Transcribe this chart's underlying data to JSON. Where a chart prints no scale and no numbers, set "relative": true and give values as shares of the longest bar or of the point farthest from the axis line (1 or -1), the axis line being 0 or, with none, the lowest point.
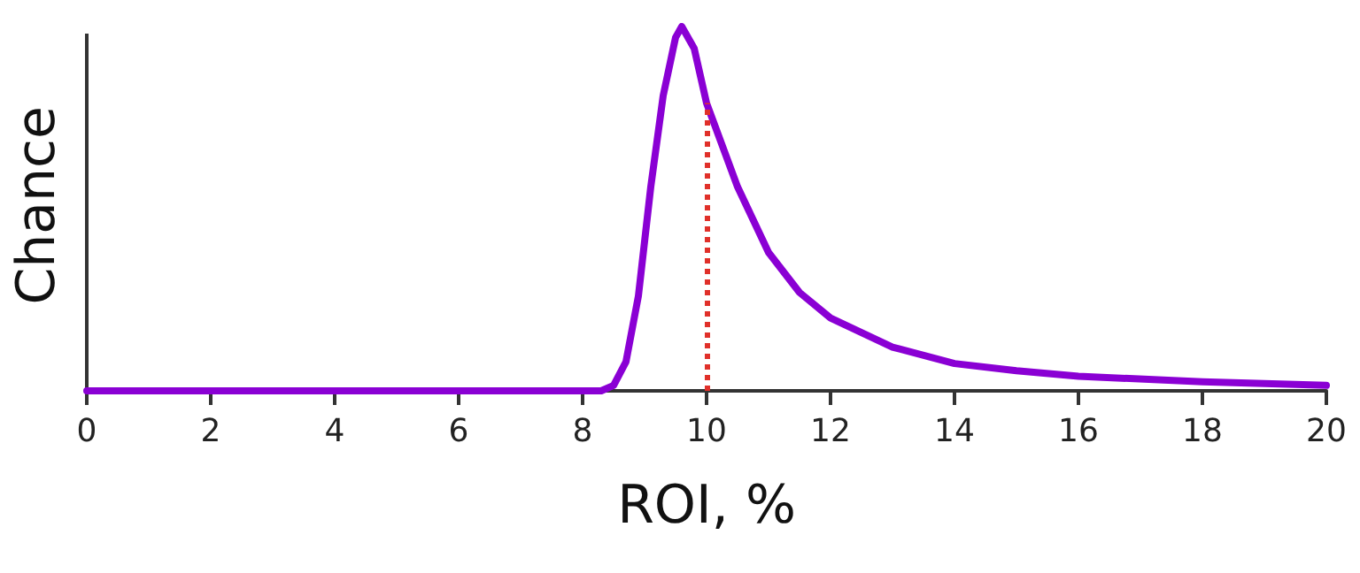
{
  "chart_data": {
    "type": "line",
    "xlabel": "ROI, %",
    "ylabel": "Chance",
    "relative": true,
    "xlim": [
      0,
      20
    ],
    "xticks": [
      0,
      2,
      4,
      6,
      8,
      10,
      12,
      14,
      16,
      18,
      20
    ],
    "grid": false,
    "marker": "none",
    "line_style": "solid",
    "series": [
      {
        "color": "#8a00d4",
        "x": [
          0,
          2,
          4,
          6,
          8,
          8.3,
          8.5,
          8.7,
          8.9,
          9.1,
          9.3,
          9.5,
          9.6,
          9.8,
          10,
          10.5,
          11,
          11.5,
          12,
          13,
          14,
          15,
          16,
          18,
          20
        ],
        "values": [
          0,
          0,
          0,
          0,
          0,
          0,
          0.015,
          0.08,
          0.26,
          0.56,
          0.81,
          0.97,
          1,
          0.94,
          0.79,
          0.56,
          0.38,
          0.27,
          0.2,
          0.12,
          0.075,
          0.055,
          0.04,
          0.025,
          0.015
        ]
      }
    ],
    "ref_lines": [
      {
        "axis": "x",
        "value": 10,
        "color": "#e0302a",
        "line_style": "dotted"
      }
    ]
  }
}
